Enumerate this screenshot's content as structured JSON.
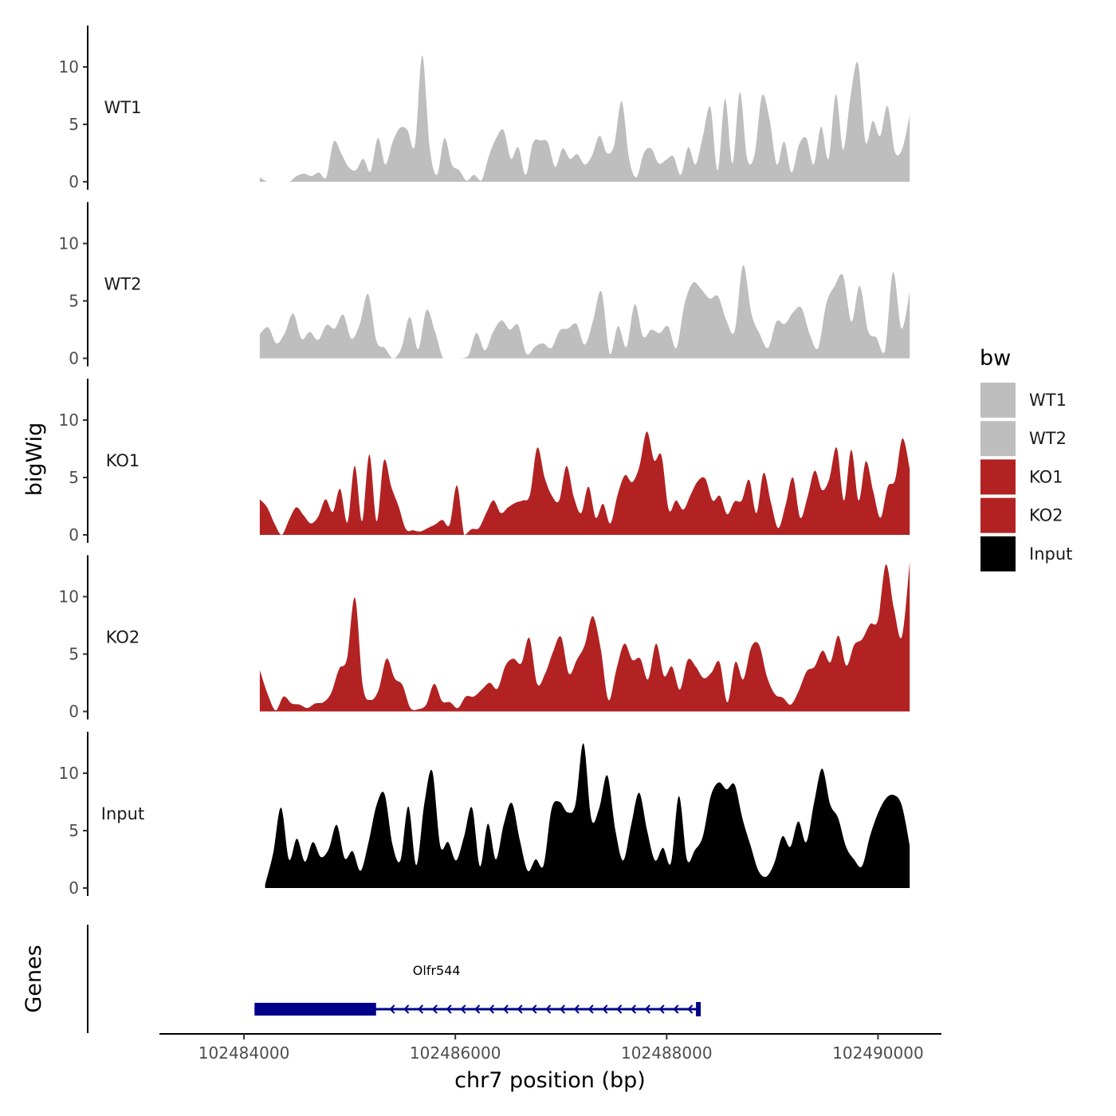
{
  "chart_data": {
    "type": "area",
    "title": "",
    "xlabel": "chr7 position (bp)",
    "ylabel": "bigWig",
    "xlim": [
      102483200,
      102490600
    ],
    "x_ticks": [
      102484000,
      102486000,
      102488000,
      102490000
    ],
    "x_tick_labels": [
      "102484000",
      "102486000",
      "102488000",
      "102490000"
    ],
    "ylim": [
      0,
      13.5
    ],
    "y_ticks": [
      0,
      5,
      10
    ],
    "y_tick_labels": [
      "0",
      "5",
      "10"
    ],
    "grid": false,
    "legend": {
      "title": "bw",
      "position": "right",
      "items": [
        {
          "label": "WT1",
          "color": "#bebebe"
        },
        {
          "label": "WT2",
          "color": "#bebebe"
        },
        {
          "label": "KO1",
          "color": "#b22222"
        },
        {
          "label": "KO2",
          "color": "#b22222"
        },
        {
          "label": "Input",
          "color": "#000000"
        }
      ]
    },
    "series": [
      {
        "name": "WT1",
        "color": "#bebebe",
        "x_start": 102484150,
        "x_end": 102490300,
        "values": [
          0.4,
          0,
          0,
          0,
          0,
          0.5,
          0.7,
          0.5,
          0.8,
          0.4,
          3.5,
          2.5,
          1.3,
          1.0,
          2.0,
          0.9,
          3.8,
          1.5,
          3.5,
          4.7,
          4.5,
          3.2,
          11.0,
          3.0,
          0.6,
          3.8,
          1.5,
          1.0,
          0.1,
          0.6,
          0.1,
          2.2,
          3.8,
          4.5,
          2.0,
          3.0,
          0.6,
          3.4,
          3.6,
          3.4,
          1.3,
          2.9,
          2.0,
          2.4,
          1.5,
          2.3,
          4.0,
          2.5,
          3.2,
          7.0,
          2.0,
          0.4,
          2.5,
          2.9,
          1.6,
          1.9,
          2.2,
          0.6,
          3.0,
          1.5,
          4.0,
          6.5,
          1.0,
          7.2,
          1.6,
          7.8,
          2.0,
          2.4,
          7.5,
          5.5,
          1.5,
          3.5,
          0.8,
          3.2,
          3.8,
          1.5,
          4.8,
          2.0,
          7.6,
          2.8,
          7.5,
          10.3,
          3.5,
          5.3,
          4.0,
          6.6,
          2.6,
          2.9,
          5.8
        ]
      },
      {
        "name": "WT2",
        "color": "#bebebe",
        "x_start": 102484150,
        "x_end": 102490300,
        "values": [
          2.1,
          2.7,
          1.3,
          2.2,
          3.9,
          1.7,
          2.3,
          1.6,
          2.9,
          2.6,
          3.8,
          1.7,
          3.0,
          5.6,
          1.5,
          0.9,
          0,
          0.9,
          3.6,
          0.8,
          4.2,
          2.4,
          0,
          0,
          0,
          0.2,
          2.2,
          0.7,
          2.3,
          3.3,
          2.5,
          2.9,
          0.4,
          1.0,
          1.3,
          0.9,
          2.4,
          2.6,
          3.0,
          1.2,
          3.3,
          5.8,
          0.4,
          2.8,
          1.0,
          4.7,
          1.9,
          2.5,
          2.2,
          2.8,
          0.9,
          4.8,
          6.6,
          6.0,
          5.2,
          5.4,
          3.3,
          2.4,
          8.1,
          3.9,
          2.1,
          0.9,
          3.2,
          3.0,
          4.0,
          4.4,
          2.1,
          0.9,
          4.8,
          6.3,
          7.2,
          3.2,
          6.3,
          2.4,
          1.8,
          0.6,
          7.5,
          2.6,
          5.8
        ]
      },
      {
        "name": "KO1",
        "color": "#b22222",
        "x_start": 102484150,
        "x_end": 102490300,
        "values": [
          3.1,
          2.4,
          1.0,
          0,
          1.3,
          2.4,
          1.7,
          1.0,
          1.6,
          3.1,
          2.0,
          4.0,
          1.1,
          6.0,
          1.2,
          7.0,
          1.2,
          6.5,
          4.2,
          2.5,
          0.5,
          0.4,
          0.3,
          0.6,
          0.9,
          1.3,
          0.9,
          4.3,
          0,
          0.5,
          0.6,
          1.9,
          3.0,
          1.9,
          2.4,
          2.8,
          3.0,
          3.5,
          7.6,
          5.0,
          3.4,
          3.0,
          6.0,
          3.3,
          1.9,
          4.2,
          1.5,
          2.7,
          1.0,
          3.5,
          5.2,
          4.6,
          6.0,
          9.0,
          6.5,
          6.9,
          2.2,
          3.0,
          2.2,
          3.5,
          4.7,
          4.9,
          3.0,
          3.4,
          1.8,
          2.9,
          3.0,
          4.8,
          1.9,
          5.4,
          2.8,
          0.6,
          2.6,
          5.0,
          1.5,
          3.3,
          5.6,
          3.9,
          4.9,
          7.6,
          3.0,
          7.4,
          3.0,
          6.4,
          3.8,
          1.5,
          4.2,
          4.8,
          8.4,
          5.8
        ]
      },
      {
        "name": "KO2",
        "color": "#b22222",
        "x_start": 102484150,
        "x_end": 102490300,
        "values": [
          3.6,
          1.5,
          0.1,
          1.3,
          0.7,
          0.6,
          0.3,
          0.7,
          0.8,
          1.6,
          3.7,
          4.6,
          9.9,
          2.2,
          1.0,
          1.9,
          4.6,
          2.9,
          2.3,
          0.3,
          0.2,
          0.6,
          2.4,
          0.9,
          0.8,
          0.3,
          1.3,
          1.3,
          1.9,
          2.5,
          2.0,
          4.0,
          4.6,
          4.2,
          6.4,
          2.4,
          3.3,
          5.2,
          6.5,
          3.3,
          4.5,
          5.8,
          8.3,
          5.5,
          1.0,
          3.7,
          5.9,
          4.5,
          4.6,
          2.8,
          5.9,
          3.1,
          3.9,
          1.9,
          4.5,
          3.9,
          2.9,
          3.4,
          4.3,
          0.8,
          4.3,
          2.8,
          5.6,
          5.8,
          3.0,
          1.5,
          1.2,
          0.6,
          1.8,
          3.5,
          3.9,
          5.3,
          4.3,
          6.6,
          4.0,
          5.8,
          6.3,
          7.6,
          8.0,
          12.8,
          9.0,
          6.5,
          13.0
        ]
      },
      {
        "name": "Input",
        "color": "#000000",
        "x_start": 102484200,
        "x_end": 102490300,
        "values": [
          0.3,
          3.0,
          7.0,
          2.5,
          4.3,
          2.3,
          4.0,
          2.7,
          3.4,
          5.5,
          2.6,
          3.2,
          1.5,
          4.0,
          7.2,
          8.2,
          3.8,
          2.4,
          7.1,
          2.0,
          7.3,
          10.2,
          3.7,
          4.0,
          2.4,
          4.5,
          7.0,
          1.9,
          5.6,
          2.5,
          5.6,
          7.4,
          4.2,
          1.5,
          2.5,
          2.0,
          6.9,
          7.5,
          6.6,
          7.3,
          12.6,
          6.0,
          7.0,
          9.8,
          5.1,
          2.4,
          5.5,
          8.3,
          5.0,
          2.4,
          3.5,
          2.2,
          8.0,
          2.5,
          3.3,
          4.5,
          8.0,
          9.2,
          8.6,
          9.0,
          6.0,
          3.7,
          1.5,
          1.0,
          2.2,
          4.5,
          3.6,
          5.8,
          4.0,
          7.5,
          10.4,
          7.3,
          6.1,
          3.6,
          2.5,
          1.9,
          4.5,
          6.5,
          7.8,
          8.1,
          7.2,
          3.7
        ]
      }
    ],
    "genes_track": {
      "label": "Genes",
      "genes": [
        {
          "name": "Olfr544",
          "color": "#00008b",
          "strand": "-",
          "start": 102484100,
          "end": 102488300,
          "thick_start": 102484100,
          "thick_end": 102485250
        }
      ]
    }
  }
}
